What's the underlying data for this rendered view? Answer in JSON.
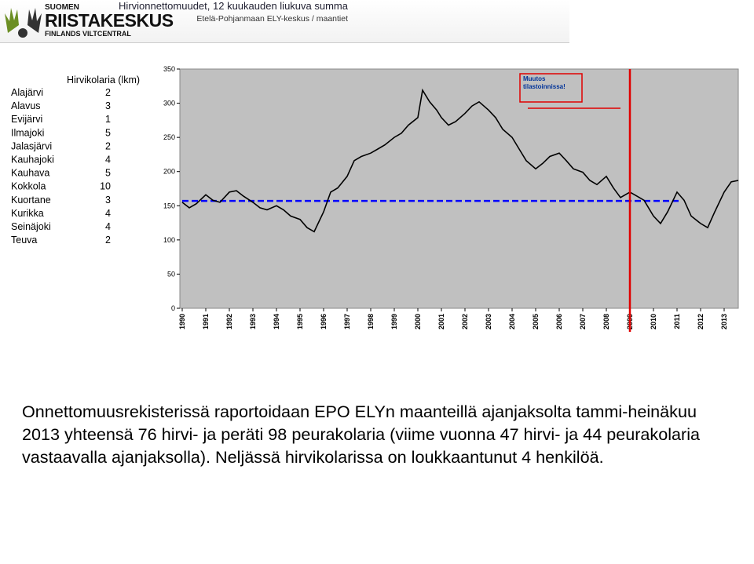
{
  "header": {
    "logo": [
      "SUOMEN",
      "RIISTAKESKUS",
      "FINLANDS VILTCENTRAL"
    ],
    "title": "Hirvionnettomuudet, 12 kuukauden liukuva summa",
    "subtitle": "Etelä-Pohjanmaan ELY-keskus / maantiet"
  },
  "table": {
    "header": "Hirvikolaria (lkm)",
    "rows": [
      [
        "Alajärvi",
        2
      ],
      [
        "Alavus",
        3
      ],
      [
        "Evijärvi",
        1
      ],
      [
        "Ilmajoki",
        5
      ],
      [
        "Jalasjärvi",
        2
      ],
      [
        "Kauhajoki",
        4
      ],
      [
        "Kauhava",
        5
      ],
      [
        "Kokkola",
        10
      ],
      [
        "Kuortane",
        3
      ],
      [
        "Kurikka",
        4
      ],
      [
        "Seinäjoki",
        4
      ],
      [
        "Teuva",
        2
      ]
    ]
  },
  "chart_data": {
    "type": "line",
    "color": "#000000",
    "background": "#c0c0c0",
    "x": [
      1990,
      1990.3,
      1990.6,
      1991,
      1991.3,
      1991.6,
      1992,
      1992.3,
      1992.6,
      1993,
      1993.3,
      1993.6,
      1994,
      1994.3,
      1994.6,
      1995,
      1995.3,
      1995.6,
      1996,
      1996.3,
      1996.6,
      1997,
      1997.3,
      1997.6,
      1998,
      1998.3,
      1998.6,
      1999,
      1999.3,
      1999.6,
      2000,
      2000.2,
      2000.5,
      2000.8,
      2001,
      2001.3,
      2001.6,
      2002,
      2002.3,
      2002.6,
      2003,
      2003.3,
      2003.6,
      2004,
      2004.3,
      2004.6,
      2005,
      2005.3,
      2005.6,
      2006,
      2006.3,
      2006.6,
      2007,
      2007.3,
      2007.6,
      2008,
      2008.3,
      2008.6,
      2009,
      2009.3,
      2009.6,
      2010,
      2010.3,
      2010.6,
      2011,
      2011.3,
      2011.6,
      2012,
      2012.3,
      2012.6,
      2013,
      2013.3,
      2013.6
    ],
    "values": [
      155,
      147,
      153,
      166,
      158,
      155,
      170,
      172,
      164,
      155,
      147,
      144,
      150,
      144,
      135,
      130,
      118,
      112,
      141,
      170,
      176,
      193,
      216,
      222,
      227,
      233,
      239,
      250,
      256,
      268,
      279,
      319,
      302,
      290,
      279,
      268,
      273,
      285,
      296,
      302,
      290,
      279,
      262,
      250,
      233,
      216,
      204,
      212,
      222,
      227,
      216,
      204,
      199,
      187,
      181,
      193,
      176,
      162,
      170,
      164,
      158,
      135,
      124,
      141,
      170,
      158,
      135,
      124,
      118,
      141,
      170,
      185,
      187
    ],
    "xlim": [
      1990,
      2013.6
    ],
    "xticks": [
      1990,
      1991,
      1992,
      1993,
      1994,
      1995,
      1996,
      1997,
      1998,
      1999,
      2000,
      2001,
      2002,
      2003,
      2004,
      2005,
      2006,
      2007,
      2008,
      2009,
      2010,
      2011,
      2012,
      2013
    ],
    "ylim": [
      0,
      350
    ],
    "yticks": [
      0,
      50,
      100,
      150,
      200,
      250,
      300,
      350
    ],
    "reference_line": {
      "value": 157,
      "x": [
        1990,
        2011.2
      ],
      "color": "#0000ff"
    },
    "vline": {
      "value": 2009,
      "color": "#e00000"
    },
    "annotation": [
      "Muutos",
      "tilastoinnissa!"
    ]
  },
  "body": "Onnettomuusrekisterissä raportoidaan EPO ELYn maanteillä ajanjaksolta tammi-heinäkuu 2013 yhteensä 76 hirvi- ja peräti 98 peurakolaria (viime vuonna 47 hirvi- ja 44 peurakolaria vastaavalla ajanjaksolla). Neljässä hirvikolarissa on loukkaantunut 4 henkilöä."
}
